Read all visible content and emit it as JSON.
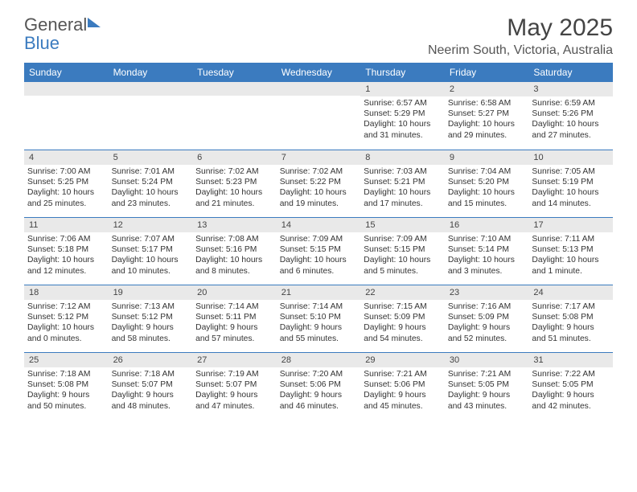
{
  "brand": {
    "part1": "General",
    "part2": "Blue"
  },
  "title": "May 2025",
  "location": "Neerim South, Victoria, Australia",
  "colors": {
    "header_bg": "#3b7bbf",
    "header_text": "#ffffff",
    "day_bar_bg": "#e9e9e9",
    "rule": "#3b7bbf",
    "text": "#333333"
  },
  "weekdays": [
    "Sunday",
    "Monday",
    "Tuesday",
    "Wednesday",
    "Thursday",
    "Friday",
    "Saturday"
  ],
  "weeks": [
    [
      {
        "day": "",
        "sunrise": "",
        "sunset": "",
        "daylight": ""
      },
      {
        "day": "",
        "sunrise": "",
        "sunset": "",
        "daylight": ""
      },
      {
        "day": "",
        "sunrise": "",
        "sunset": "",
        "daylight": ""
      },
      {
        "day": "",
        "sunrise": "",
        "sunset": "",
        "daylight": ""
      },
      {
        "day": "1",
        "sunrise": "Sunrise: 6:57 AM",
        "sunset": "Sunset: 5:29 PM",
        "daylight": "Daylight: 10 hours and 31 minutes."
      },
      {
        "day": "2",
        "sunrise": "Sunrise: 6:58 AM",
        "sunset": "Sunset: 5:27 PM",
        "daylight": "Daylight: 10 hours and 29 minutes."
      },
      {
        "day": "3",
        "sunrise": "Sunrise: 6:59 AM",
        "sunset": "Sunset: 5:26 PM",
        "daylight": "Daylight: 10 hours and 27 minutes."
      }
    ],
    [
      {
        "day": "4",
        "sunrise": "Sunrise: 7:00 AM",
        "sunset": "Sunset: 5:25 PM",
        "daylight": "Daylight: 10 hours and 25 minutes."
      },
      {
        "day": "5",
        "sunrise": "Sunrise: 7:01 AM",
        "sunset": "Sunset: 5:24 PM",
        "daylight": "Daylight: 10 hours and 23 minutes."
      },
      {
        "day": "6",
        "sunrise": "Sunrise: 7:02 AM",
        "sunset": "Sunset: 5:23 PM",
        "daylight": "Daylight: 10 hours and 21 minutes."
      },
      {
        "day": "7",
        "sunrise": "Sunrise: 7:02 AM",
        "sunset": "Sunset: 5:22 PM",
        "daylight": "Daylight: 10 hours and 19 minutes."
      },
      {
        "day": "8",
        "sunrise": "Sunrise: 7:03 AM",
        "sunset": "Sunset: 5:21 PM",
        "daylight": "Daylight: 10 hours and 17 minutes."
      },
      {
        "day": "9",
        "sunrise": "Sunrise: 7:04 AM",
        "sunset": "Sunset: 5:20 PM",
        "daylight": "Daylight: 10 hours and 15 minutes."
      },
      {
        "day": "10",
        "sunrise": "Sunrise: 7:05 AM",
        "sunset": "Sunset: 5:19 PM",
        "daylight": "Daylight: 10 hours and 14 minutes."
      }
    ],
    [
      {
        "day": "11",
        "sunrise": "Sunrise: 7:06 AM",
        "sunset": "Sunset: 5:18 PM",
        "daylight": "Daylight: 10 hours and 12 minutes."
      },
      {
        "day": "12",
        "sunrise": "Sunrise: 7:07 AM",
        "sunset": "Sunset: 5:17 PM",
        "daylight": "Daylight: 10 hours and 10 minutes."
      },
      {
        "day": "13",
        "sunrise": "Sunrise: 7:08 AM",
        "sunset": "Sunset: 5:16 PM",
        "daylight": "Daylight: 10 hours and 8 minutes."
      },
      {
        "day": "14",
        "sunrise": "Sunrise: 7:09 AM",
        "sunset": "Sunset: 5:15 PM",
        "daylight": "Daylight: 10 hours and 6 minutes."
      },
      {
        "day": "15",
        "sunrise": "Sunrise: 7:09 AM",
        "sunset": "Sunset: 5:15 PM",
        "daylight": "Daylight: 10 hours and 5 minutes."
      },
      {
        "day": "16",
        "sunrise": "Sunrise: 7:10 AM",
        "sunset": "Sunset: 5:14 PM",
        "daylight": "Daylight: 10 hours and 3 minutes."
      },
      {
        "day": "17",
        "sunrise": "Sunrise: 7:11 AM",
        "sunset": "Sunset: 5:13 PM",
        "daylight": "Daylight: 10 hours and 1 minute."
      }
    ],
    [
      {
        "day": "18",
        "sunrise": "Sunrise: 7:12 AM",
        "sunset": "Sunset: 5:12 PM",
        "daylight": "Daylight: 10 hours and 0 minutes."
      },
      {
        "day": "19",
        "sunrise": "Sunrise: 7:13 AM",
        "sunset": "Sunset: 5:12 PM",
        "daylight": "Daylight: 9 hours and 58 minutes."
      },
      {
        "day": "20",
        "sunrise": "Sunrise: 7:14 AM",
        "sunset": "Sunset: 5:11 PM",
        "daylight": "Daylight: 9 hours and 57 minutes."
      },
      {
        "day": "21",
        "sunrise": "Sunrise: 7:14 AM",
        "sunset": "Sunset: 5:10 PM",
        "daylight": "Daylight: 9 hours and 55 minutes."
      },
      {
        "day": "22",
        "sunrise": "Sunrise: 7:15 AM",
        "sunset": "Sunset: 5:09 PM",
        "daylight": "Daylight: 9 hours and 54 minutes."
      },
      {
        "day": "23",
        "sunrise": "Sunrise: 7:16 AM",
        "sunset": "Sunset: 5:09 PM",
        "daylight": "Daylight: 9 hours and 52 minutes."
      },
      {
        "day": "24",
        "sunrise": "Sunrise: 7:17 AM",
        "sunset": "Sunset: 5:08 PM",
        "daylight": "Daylight: 9 hours and 51 minutes."
      }
    ],
    [
      {
        "day": "25",
        "sunrise": "Sunrise: 7:18 AM",
        "sunset": "Sunset: 5:08 PM",
        "daylight": "Daylight: 9 hours and 50 minutes."
      },
      {
        "day": "26",
        "sunrise": "Sunrise: 7:18 AM",
        "sunset": "Sunset: 5:07 PM",
        "daylight": "Daylight: 9 hours and 48 minutes."
      },
      {
        "day": "27",
        "sunrise": "Sunrise: 7:19 AM",
        "sunset": "Sunset: 5:07 PM",
        "daylight": "Daylight: 9 hours and 47 minutes."
      },
      {
        "day": "28",
        "sunrise": "Sunrise: 7:20 AM",
        "sunset": "Sunset: 5:06 PM",
        "daylight": "Daylight: 9 hours and 46 minutes."
      },
      {
        "day": "29",
        "sunrise": "Sunrise: 7:21 AM",
        "sunset": "Sunset: 5:06 PM",
        "daylight": "Daylight: 9 hours and 45 minutes."
      },
      {
        "day": "30",
        "sunrise": "Sunrise: 7:21 AM",
        "sunset": "Sunset: 5:05 PM",
        "daylight": "Daylight: 9 hours and 43 minutes."
      },
      {
        "day": "31",
        "sunrise": "Sunrise: 7:22 AM",
        "sunset": "Sunset: 5:05 PM",
        "daylight": "Daylight: 9 hours and 42 minutes."
      }
    ]
  ]
}
